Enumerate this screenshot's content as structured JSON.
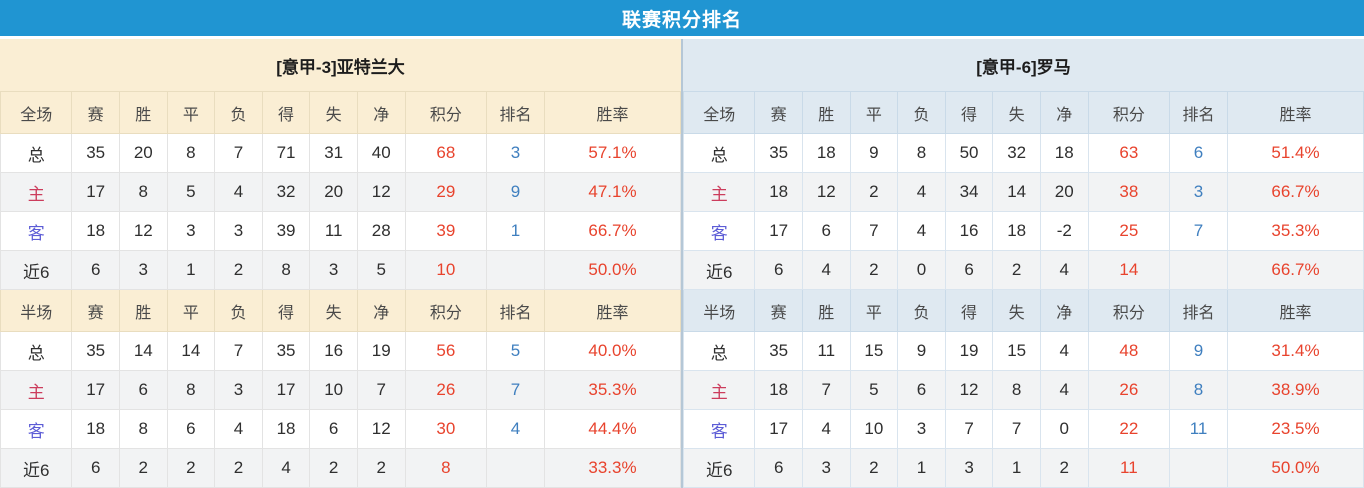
{
  "title": "联赛积分排名",
  "colors": {
    "title_bar": "#2095d2",
    "left_panel_bg": "#faeed4",
    "right_panel_bg": "#dfe9f1",
    "points_text": "#e8432d",
    "rank_text": "#3f7fbf",
    "win_rate_text": "#e8432d",
    "home_label": "#cc3c5c",
    "away_label": "#5c5cd6"
  },
  "columns_full": [
    "全场",
    "赛",
    "胜",
    "平",
    "负",
    "得",
    "失",
    "净",
    "积分",
    "排名",
    "胜率"
  ],
  "columns_half": [
    "半场",
    "赛",
    "胜",
    "平",
    "负",
    "得",
    "失",
    "净",
    "积分",
    "排名",
    "胜率"
  ],
  "teams": [
    {
      "name": "[意甲-3]亚特兰大",
      "full": {
        "rows": [
          {
            "label": "总",
            "label_style": "dark",
            "values": [
              "35",
              "20",
              "8",
              "7",
              "71",
              "31",
              "40"
            ],
            "points": "68",
            "rank": "3",
            "win_rate": "57.1%"
          },
          {
            "label": "主",
            "label_style": "red",
            "values": [
              "17",
              "8",
              "5",
              "4",
              "32",
              "20",
              "12"
            ],
            "points": "29",
            "rank": "9",
            "win_rate": "47.1%"
          },
          {
            "label": "客",
            "label_style": "blue",
            "values": [
              "18",
              "12",
              "3",
              "3",
              "39",
              "11",
              "28"
            ],
            "points": "39",
            "rank": "1",
            "win_rate": "66.7%"
          },
          {
            "label": "近6",
            "label_style": "dark",
            "values": [
              "6",
              "3",
              "1",
              "2",
              "8",
              "3",
              "5"
            ],
            "points": "10",
            "rank": "",
            "win_rate": "50.0%"
          }
        ]
      },
      "half": {
        "rows": [
          {
            "label": "总",
            "label_style": "dark",
            "values": [
              "35",
              "14",
              "14",
              "7",
              "35",
              "16",
              "19"
            ],
            "points": "56",
            "rank": "5",
            "win_rate": "40.0%"
          },
          {
            "label": "主",
            "label_style": "red",
            "values": [
              "17",
              "6",
              "8",
              "3",
              "17",
              "10",
              "7"
            ],
            "points": "26",
            "rank": "7",
            "win_rate": "35.3%"
          },
          {
            "label": "客",
            "label_style": "blue",
            "values": [
              "18",
              "8",
              "6",
              "4",
              "18",
              "6",
              "12"
            ],
            "points": "30",
            "rank": "4",
            "win_rate": "44.4%"
          },
          {
            "label": "近6",
            "label_style": "dark",
            "values": [
              "6",
              "2",
              "2",
              "2",
              "4",
              "2",
              "2"
            ],
            "points": "8",
            "rank": "",
            "win_rate": "33.3%"
          }
        ]
      }
    },
    {
      "name": "[意甲-6]罗马",
      "full": {
        "rows": [
          {
            "label": "总",
            "label_style": "dark",
            "values": [
              "35",
              "18",
              "9",
              "8",
              "50",
              "32",
              "18"
            ],
            "points": "63",
            "rank": "6",
            "win_rate": "51.4%"
          },
          {
            "label": "主",
            "label_style": "red",
            "values": [
              "18",
              "12",
              "2",
              "4",
              "34",
              "14",
              "20"
            ],
            "points": "38",
            "rank": "3",
            "win_rate": "66.7%"
          },
          {
            "label": "客",
            "label_style": "blue",
            "values": [
              "17",
              "6",
              "7",
              "4",
              "16",
              "18",
              "-2"
            ],
            "points": "25",
            "rank": "7",
            "win_rate": "35.3%"
          },
          {
            "label": "近6",
            "label_style": "dark",
            "values": [
              "6",
              "4",
              "2",
              "0",
              "6",
              "2",
              "4"
            ],
            "points": "14",
            "rank": "",
            "win_rate": "66.7%"
          }
        ]
      },
      "half": {
        "rows": [
          {
            "label": "总",
            "label_style": "dark",
            "values": [
              "35",
              "11",
              "15",
              "9",
              "19",
              "15",
              "4"
            ],
            "points": "48",
            "rank": "9",
            "win_rate": "31.4%"
          },
          {
            "label": "主",
            "label_style": "red",
            "values": [
              "18",
              "7",
              "5",
              "6",
              "12",
              "8",
              "4"
            ],
            "points": "26",
            "rank": "8",
            "win_rate": "38.9%"
          },
          {
            "label": "客",
            "label_style": "blue",
            "values": [
              "17",
              "4",
              "10",
              "3",
              "7",
              "7",
              "0"
            ],
            "points": "22",
            "rank": "11",
            "win_rate": "23.5%"
          },
          {
            "label": "近6",
            "label_style": "dark",
            "values": [
              "6",
              "3",
              "2",
              "1",
              "3",
              "1",
              "2"
            ],
            "points": "11",
            "rank": "",
            "win_rate": "50.0%"
          }
        ]
      }
    }
  ]
}
